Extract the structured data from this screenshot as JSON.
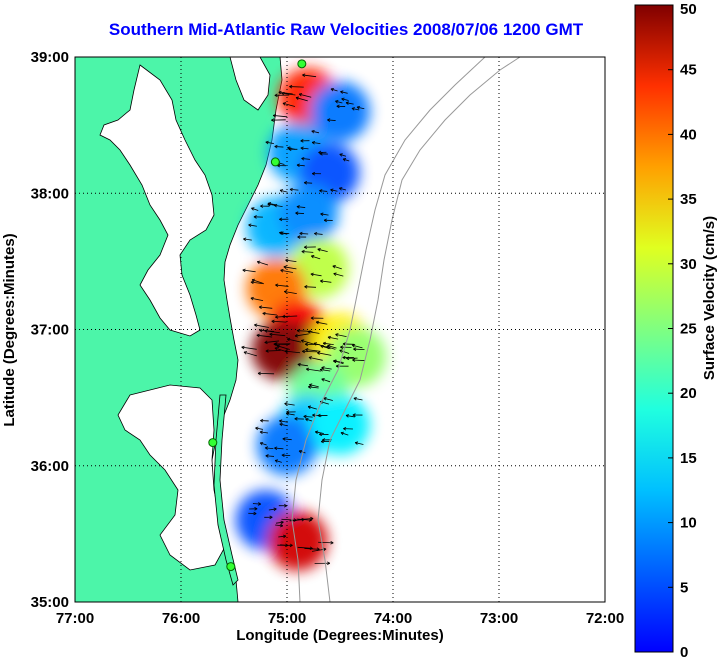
{
  "title": "Southern Mid-Atlantic Raw Velocities 2008/07/06 1200 GMT",
  "axes": {
    "xlabel": "Longitude (Degrees:Minutes)",
    "ylabel": "Latitude (Degrees:Minutes)",
    "xticks": [
      "77:00",
      "76:00",
      "75:00",
      "74:00",
      "73:00",
      "72:00"
    ],
    "yticks": [
      "39:00",
      "38:00",
      "37:00",
      "36:00",
      "35:00"
    ]
  },
  "colorbar": {
    "label": "Surface Velocity (cm/s)",
    "ticks": [
      "0",
      "5",
      "10",
      "15",
      "20",
      "25",
      "30",
      "35",
      "40",
      "45",
      "50"
    ],
    "min": 0,
    "max": 50
  },
  "chart_data": {
    "type": "heatmap",
    "title": "Southern Mid-Atlantic Raw Velocities 2008/07/06 1200 GMT",
    "xlabel": "Longitude (Degrees:Minutes)",
    "ylabel": "Latitude (Degrees:Minutes)",
    "xlim": [
      -77,
      -72
    ],
    "ylim": [
      35,
      39
    ],
    "color_scale": "jet",
    "color_range": [
      0,
      50
    ],
    "colorbar_label": "Surface Velocity (cm/s)",
    "grid": true,
    "land_color": "#4cf5a9",
    "radar_sites": [
      {
        "lon": -74.86,
        "lat": 38.95
      },
      {
        "lon": -75.11,
        "lat": 38.23
      },
      {
        "lon": -75.7,
        "lat": 36.17
      },
      {
        "lon": -75.53,
        "lat": 35.26
      }
    ],
    "velocity_regions": [
      {
        "lon": -74.8,
        "lat": 38.7,
        "speed": 42
      },
      {
        "lon": -74.5,
        "lat": 38.6,
        "speed": 12
      },
      {
        "lon": -74.9,
        "lat": 38.3,
        "speed": 14
      },
      {
        "lon": -74.6,
        "lat": 38.15,
        "speed": 10
      },
      {
        "lon": -75.1,
        "lat": 37.75,
        "speed": 15
      },
      {
        "lon": -74.8,
        "lat": 37.85,
        "speed": 13
      },
      {
        "lon": -74.7,
        "lat": 37.45,
        "speed": 28
      },
      {
        "lon": -75.1,
        "lat": 37.3,
        "speed": 38
      },
      {
        "lon": -74.9,
        "lat": 37.0,
        "speed": 44
      },
      {
        "lon": -74.8,
        "lat": 36.85,
        "speed": 48
      },
      {
        "lon": -75.05,
        "lat": 36.85,
        "speed": 50
      },
      {
        "lon": -74.5,
        "lat": 36.9,
        "speed": 32
      },
      {
        "lon": -74.35,
        "lat": 36.8,
        "speed": 26
      },
      {
        "lon": -74.7,
        "lat": 36.55,
        "speed": 24
      },
      {
        "lon": -74.8,
        "lat": 36.3,
        "speed": 16
      },
      {
        "lon": -75.0,
        "lat": 36.15,
        "speed": 12
      },
      {
        "lon": -74.5,
        "lat": 36.3,
        "speed": 18
      },
      {
        "lon": -75.2,
        "lat": 35.6,
        "speed": 10
      },
      {
        "lon": -74.9,
        "lat": 35.45,
        "speed": 46
      }
    ]
  }
}
